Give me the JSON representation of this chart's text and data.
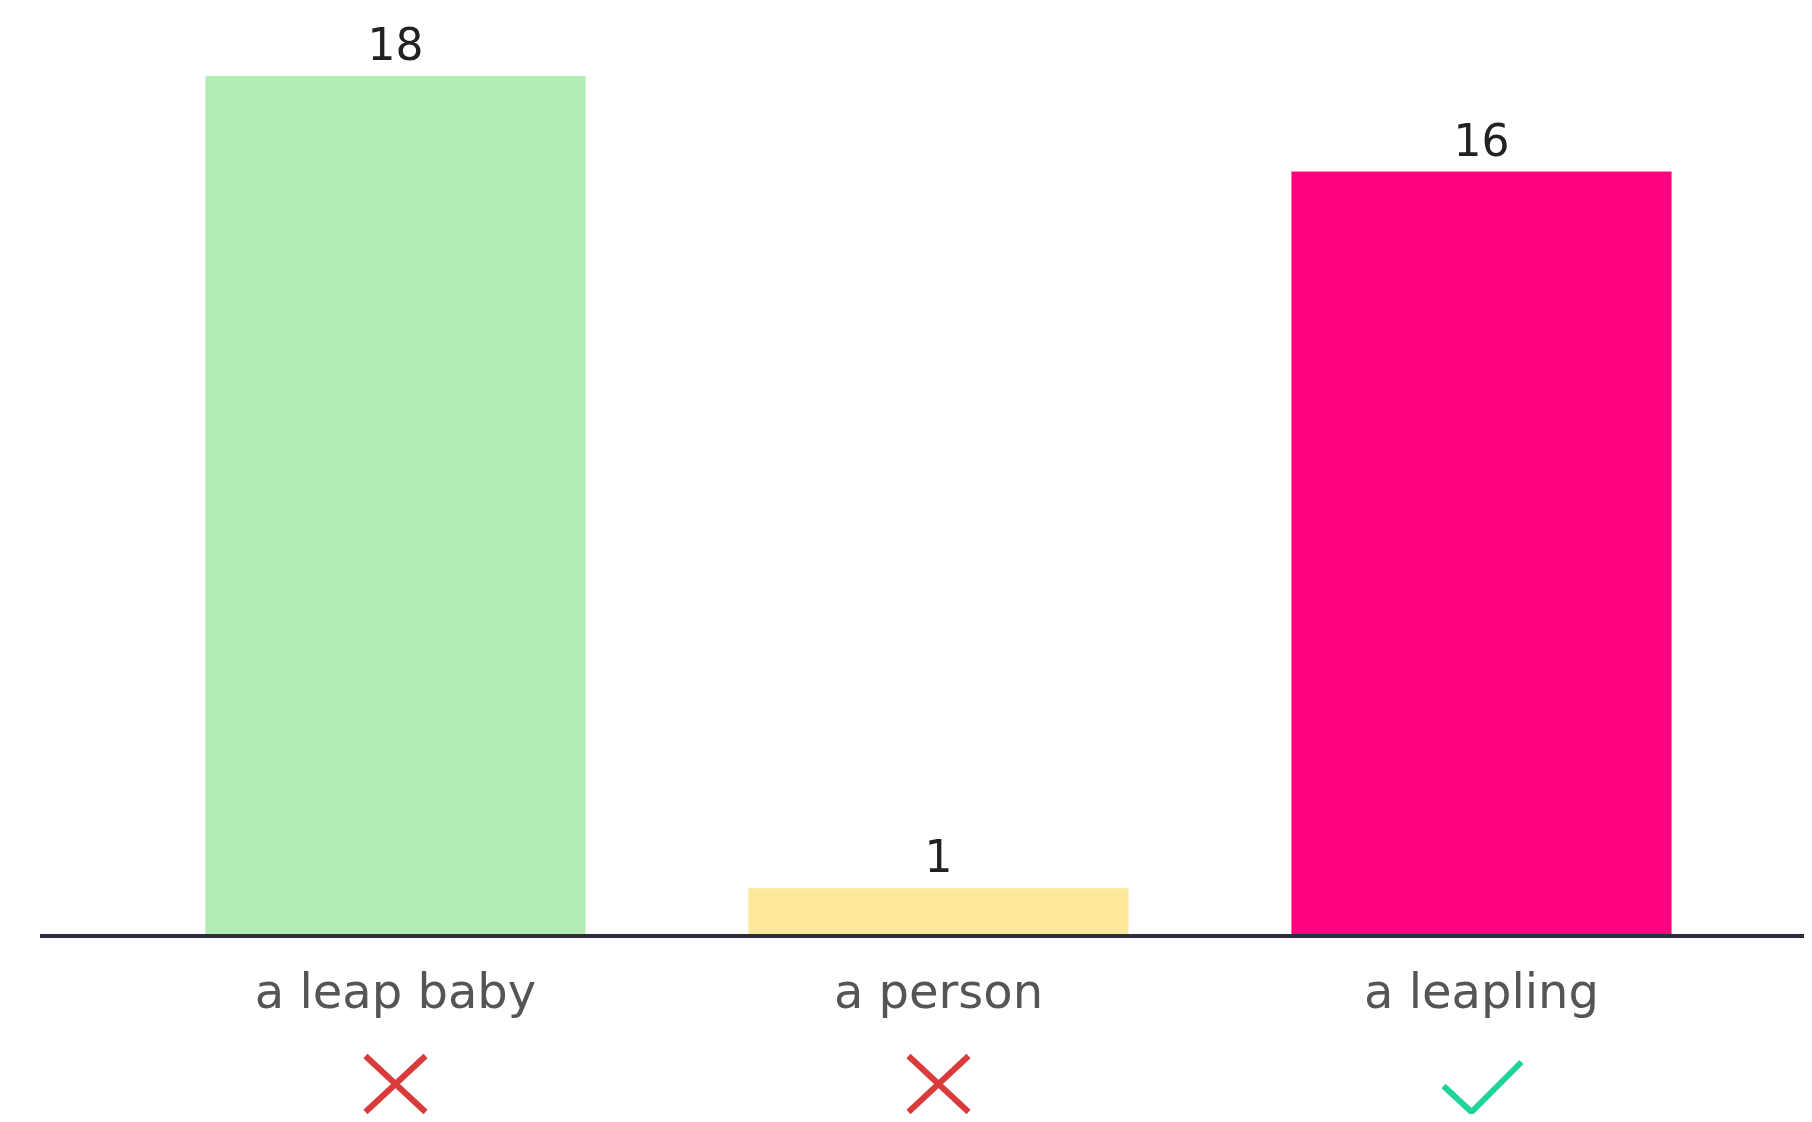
{
  "chart_data": {
    "type": "bar",
    "categories": [
      "a leap baby",
      "a person",
      "a leapling"
    ],
    "values": [
      18,
      1,
      16
    ],
    "colors": [
      "#b3ecb3",
      "#fce79a",
      "#ff0080"
    ],
    "ylim": [
      0,
      18
    ],
    "data_labels": true
  }
}
